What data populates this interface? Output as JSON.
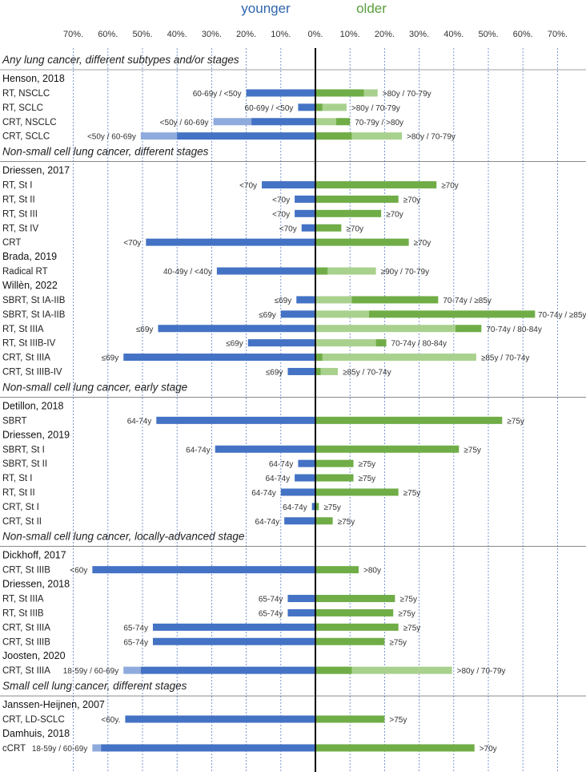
{
  "chart_data": {
    "type": "diverging-bar",
    "headers": {
      "left": "younger",
      "right": "older"
    },
    "axis": {
      "ticks": [
        70,
        60,
        50,
        40,
        30,
        20,
        10,
        0,
        10,
        20,
        30,
        40,
        50,
        60,
        70
      ],
      "tick_suffix": "%.",
      "range": [
        -70,
        70
      ],
      "grid": "dotted-vertical"
    },
    "colors": {
      "younger_dark": "#4472c4",
      "younger_light": "#8faadc",
      "older_dark": "#70ad47",
      "older_light": "#a9d18e",
      "center_line": "#000000",
      "grid": "#5b7fc7",
      "section_text": "#222222"
    },
    "sections": [
      {
        "title": "Any lung cancer, different subtypes and/or stages",
        "studies": [
          {
            "name": "Henson, 2018",
            "rows": [
              {
                "label": "RT, NSCLC",
                "annotation_left": "60-69y / <50y",
                "annotation_right": ">80y / 70-79y",
                "younger": {
                  "dark": 20,
                  "light": 16
                },
                "older": {
                  "dark": 14,
                  "light": 18
                }
              },
              {
                "label": "RT, SCLC",
                "annotation_left": "60-69y / <50y",
                "annotation_right": ">80y / 70-79y",
                "younger": {
                  "dark": 5,
                  "light": 2
                },
                "older": {
                  "dark": 2,
                  "light": 9
                }
              },
              {
                "label": "CRT, NSCLC",
                "annotation_left": "<50y / 60-69y",
                "annotation_right": "70-79y / >80y",
                "younger": {
                  "dark": 18.5,
                  "light": 29.5
                },
                "older": {
                  "dark": 10,
                  "light": 6
                }
              },
              {
                "label": "CRT, SCLC",
                "annotation_left": "<50y / 60-69y",
                "annotation_right": ">80y / 70-79y",
                "younger": {
                  "dark": 40,
                  "light": 50.5
                },
                "older": {
                  "dark": 10.5,
                  "light": 25
                }
              }
            ]
          }
        ]
      },
      {
        "title": "Non-small cell lung cancer, different stages",
        "studies": [
          {
            "name": "Driessen, 2017",
            "rows": [
              {
                "label": "RT, St I",
                "annotation_left": "<70y",
                "annotation_right": "≥70y",
                "younger": {
                  "dark": 15.5
                },
                "older": {
                  "dark": 35
                }
              },
              {
                "label": "RT, St II",
                "annotation_left": "<70y",
                "annotation_right": "≥70y",
                "younger": {
                  "dark": 6
                },
                "older": {
                  "dark": 24
                }
              },
              {
                "label": "RT, St III",
                "annotation_left": "<70y",
                "annotation_right": "≥70y",
                "younger": {
                  "dark": 6
                },
                "older": {
                  "dark": 19
                }
              },
              {
                "label": "RT, St IV",
                "annotation_left": "<70y",
                "annotation_right": "≥70y",
                "younger": {
                  "dark": 4
                },
                "older": {
                  "dark": 7.5
                }
              },
              {
                "label": "CRT",
                "annotation_left": "<70y",
                "annotation_right": "≥70y",
                "younger": {
                  "dark": 49
                },
                "older": {
                  "dark": 27
                }
              }
            ]
          },
          {
            "name": "Brada, 2019",
            "rows": [
              {
                "label": "Radical RT",
                "annotation_left": "40-49y / <40y",
                "annotation_right": "≥90y / 70-79y",
                "younger": {
                  "dark": 28.5,
                  "light": 21
                },
                "older": {
                  "dark": 3.5,
                  "light": 17.5
                }
              }
            ]
          },
          {
            "name": "Willèn, 2022",
            "rows": [
              {
                "label": "SBRT, St IA-IIB",
                "annotation_left": "≤69y",
                "annotation_right": "70-74y / ≥85y",
                "younger": {
                  "dark": 5.5
                },
                "older": {
                  "dark": 35.5,
                  "light": 10.5
                }
              },
              {
                "label": "SBRT, St IA-IIB",
                "annotation_left": "≤69y",
                "annotation_right": "70-74y / ≥85y",
                "younger": {
                  "dark": 10
                },
                "older": {
                  "dark": 63.5,
                  "light": 15.5
                }
              },
              {
                "label": "RT, St IIIA",
                "annotation_left": "≤69y",
                "annotation_right": "70-74y / 80-84y",
                "younger": {
                  "dark": 45.5
                },
                "older": {
                  "dark": 48,
                  "light": 40.5
                }
              },
              {
                "label": "RT, St IIIB-IV",
                "annotation_left": "≤69y",
                "annotation_right": "70-74y / 80-84y",
                "younger": {
                  "dark": 19.5
                },
                "older": {
                  "dark": 20.5,
                  "light": 17.5
                }
              },
              {
                "label": "CRT, St IIIA",
                "annotation_left": "≤69y",
                "annotation_right": "≥85y / 70-74y",
                "younger": {
                  "dark": 55.5
                },
                "older": {
                  "dark": 2,
                  "light": 46.5
                }
              },
              {
                "label": "CRT, St IIIB-IV",
                "annotation_left": "≤69y",
                "annotation_right": "≥85y / 70-74y",
                "younger": {
                  "dark": 8
                },
                "older": {
                  "dark": 1.5,
                  "light": 6.5
                }
              }
            ]
          }
        ]
      },
      {
        "title": "Non-small cell lung cancer, early stage",
        "studies": [
          {
            "name": "Detillon, 2018",
            "rows": [
              {
                "label": "SBRT",
                "annotation_left": "64-74y",
                "annotation_right": "≥75y",
                "younger": {
                  "dark": 46
                },
                "older": {
                  "dark": 54
                }
              }
            ]
          },
          {
            "name": "Driessen, 2019",
            "rows": [
              {
                "label": "SBRT, St I",
                "annotation_left": "64-74y",
                "annotation_right": "≥75y",
                "younger": {
                  "dark": 29
                },
                "older": {
                  "dark": 41.5
                }
              },
              {
                "label": "SBRT, St II",
                "annotation_left": "64-74y",
                "annotation_right": "≥75y",
                "younger": {
                  "dark": 5
                },
                "older": {
                  "dark": 11
                }
              },
              {
                "label": "RT, St I",
                "annotation_left": "64-74y",
                "annotation_right": "≥75y",
                "younger": {
                  "dark": 6
                },
                "older": {
                  "dark": 11
                }
              },
              {
                "label": "RT, St II",
                "annotation_left": "64-74y",
                "annotation_right": "≥75y",
                "younger": {
                  "dark": 10
                },
                "older": {
                  "dark": 24
                }
              },
              {
                "label": "CRT, St I",
                "annotation_left": "64-74y",
                "annotation_right": "≥75y",
                "younger": {
                  "dark": 1
                },
                "older": {
                  "dark": 1
                }
              },
              {
                "label": "CRT, St II",
                "annotation_left": "64-74y",
                "annotation_right": "≥75y",
                "younger": {
                  "dark": 9
                },
                "older": {
                  "dark": 5
                }
              }
            ]
          }
        ]
      },
      {
        "title": "Non-small cell lung cancer, locally-advanced stage",
        "studies": [
          {
            "name": "Dickhoff, 2017",
            "rows": [
              {
                "label": "CRT, St IIIB",
                "annotation_left": "<60y",
                "annotation_right": ">80y",
                "younger": {
                  "dark": 64.5
                },
                "older": {
                  "dark": 12.5
                }
              }
            ]
          },
          {
            "name": "Driessen, 2018",
            "rows": [
              {
                "label": "RT, St IIIA",
                "annotation_left": "65-74y",
                "annotation_right": "≥75y",
                "younger": {
                  "dark": 8
                },
                "older": {
                  "dark": 23
                }
              },
              {
                "label": "RT, St IIIB",
                "annotation_left": "65-74y",
                "annotation_right": "≥75y",
                "younger": {
                  "dark": 8
                },
                "older": {
                  "dark": 22.5
                }
              },
              {
                "label": "CRT, St IIIA",
                "annotation_left": "65-74y",
                "annotation_right": "≥75y",
                "younger": {
                  "dark": 47
                },
                "older": {
                  "dark": 24
                }
              },
              {
                "label": "CRT, St IIIB",
                "annotation_left": "65-74y",
                "annotation_right": "≥75y",
                "younger": {
                  "dark": 47
                },
                "older": {
                  "dark": 20
                }
              }
            ]
          },
          {
            "name": "Joosten, 2020",
            "rows": [
              {
                "label": "CRT, St IIIA",
                "annotation_left": "18-59y / 60-69y",
                "annotation_right": ">80y / 70-79y",
                "younger": {
                  "dark": 50.5,
                  "light": 55.5
                },
                "older": {
                  "dark": 10.5,
                  "light": 39.5
                }
              }
            ]
          }
        ]
      },
      {
        "title": "Small cell lung cancer, different stages",
        "studies": [
          {
            "name": "Janssen-Heijnen, 2007",
            "rows": [
              {
                "label": "CRT, LD-SCLC",
                "annotation_left": "<60y.",
                "annotation_right": ">75y",
                "younger": {
                  "dark": 55
                },
                "older": {
                  "dark": 20
                }
              }
            ]
          },
          {
            "name": "Damhuis, 2018",
            "rows": [
              {
                "label": "cCRT",
                "annotation_left": "18-59y / 60-69y",
                "annotation_right": ">70y",
                "younger": {
                  "dark": 62,
                  "light": 64.5
                },
                "older": {
                  "dark": 46
                }
              }
            ]
          }
        ]
      }
    ]
  }
}
